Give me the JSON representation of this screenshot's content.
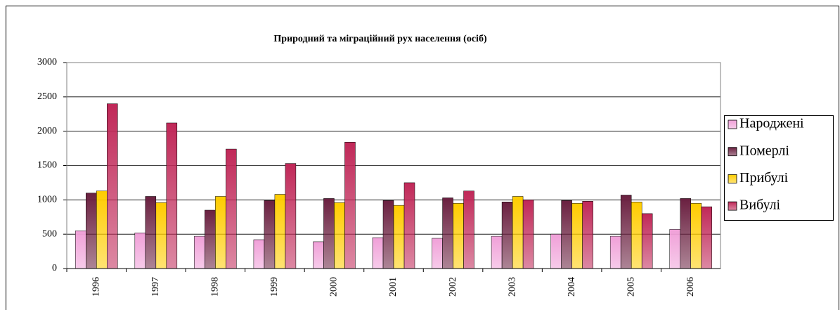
{
  "chart_data": {
    "type": "bar",
    "title": "Природний та міграційний рух населення (осіб)",
    "categories": [
      "1996",
      "1997",
      "1998",
      "1999",
      "2000",
      "2001",
      "2002",
      "2003",
      "2004",
      "2005",
      "2006"
    ],
    "series": [
      {
        "name": "Народжені",
        "color": "#f0a0d8",
        "values": [
          550,
          520,
          470,
          420,
          390,
          450,
          440,
          470,
          500,
          470,
          570
        ]
      },
      {
        "name": "Померлі",
        "color": "#6a2040",
        "values": [
          1100,
          1050,
          850,
          990,
          1020,
          990,
          1030,
          970,
          990,
          1070,
          1020
        ]
      },
      {
        "name": "Прибулі",
        "color": "#ffcc00",
        "values": [
          1130,
          960,
          1050,
          1080,
          960,
          920,
          950,
          1050,
          950,
          970,
          950
        ]
      },
      {
        "name": "Вибулі",
        "color": "#c02858",
        "values": [
          2400,
          2120,
          1740,
          1530,
          1840,
          1250,
          1130,
          1000,
          980,
          800,
          900
        ]
      }
    ],
    "ylim": [
      0,
      3000
    ],
    "yticks": [
      0,
      500,
      1000,
      1500,
      2000,
      2500,
      3000
    ],
    "grid": true,
    "legend": "right"
  }
}
